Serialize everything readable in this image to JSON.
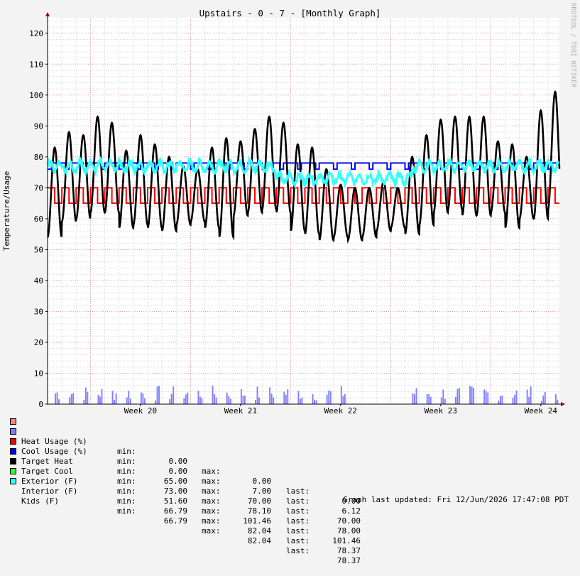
{
  "chart_data": {
    "type": "line",
    "title": "Upstairs - 0 - 7 - [Monthly Graph]",
    "ylabel": "Temperature/Usage",
    "xlabel": "",
    "ylim": [
      0,
      125
    ],
    "yticks": [
      0,
      10,
      20,
      30,
      40,
      50,
      60,
      70,
      80,
      90,
      100,
      110,
      120
    ],
    "xticks": [
      {
        "label": "Week 20",
        "day": 6.5
      },
      {
        "label": "Week 21",
        "day": 13.5
      },
      {
        "label": "Week 22",
        "day": 20.5
      },
      {
        "label": "Week 23",
        "day": 27.5
      },
      {
        "label": "Week 24",
        "day": 34.5
      }
    ],
    "xlim_days": [
      0,
      35.8
    ],
    "grid": true,
    "watermark": "RRDTOOL / TOBI OETIKER",
    "series": [
      {
        "name": "Heat Usage (%)",
        "color": "#ff8080",
        "min": "0.00",
        "max": "0.00",
        "last": "0.00"
      },
      {
        "name": "Cool Usage (%)",
        "color": "#8080ff",
        "min": "0.00",
        "max": "7.00",
        "last": "6.12"
      },
      {
        "name": "Target Heat",
        "color": "#ff0000",
        "min": "65.00",
        "max": "70.00",
        "last": "70.00"
      },
      {
        "name": "Target Cool",
        "color": "#0000ff",
        "min": "73.00",
        "max": "78.10",
        "last": "78.00"
      },
      {
        "name": "Exterior (F)",
        "color": "#000000",
        "min": "51.60",
        "max": "101.46",
        "last": "101.46"
      },
      {
        "name": "Interior (F)",
        "color": "#33ff33",
        "min": "66.79",
        "max": "82.04",
        "last": "78.37"
      },
      {
        "name": "Kids (F)",
        "color": "#33ffff",
        "min": "66.79",
        "max": "82.04",
        "last": "78.37"
      }
    ],
    "exterior_daily": [
      {
        "day": 0,
        "low": 54,
        "high": 83
      },
      {
        "day": 1,
        "low": 59,
        "high": 88
      },
      {
        "day": 2,
        "low": 60,
        "high": 87
      },
      {
        "day": 3,
        "low": 62,
        "high": 93
      },
      {
        "day": 4,
        "low": 62,
        "high": 91
      },
      {
        "day": 5,
        "low": 57,
        "high": 82
      },
      {
        "day": 6,
        "low": 58,
        "high": 87
      },
      {
        "day": 7,
        "low": 57,
        "high": 84
      },
      {
        "day": 8,
        "low": 56,
        "high": 80
      },
      {
        "day": 9,
        "low": 58,
        "high": 77
      },
      {
        "day": 10,
        "low": 59,
        "high": 76
      },
      {
        "day": 11,
        "low": 57,
        "high": 83
      },
      {
        "day": 12,
        "low": 54,
        "high": 86
      },
      {
        "day": 13,
        "low": 61,
        "high": 85
      },
      {
        "day": 14,
        "low": 62,
        "high": 89
      },
      {
        "day": 15,
        "low": 63,
        "high": 93
      },
      {
        "day": 16,
        "low": 62,
        "high": 91
      },
      {
        "day": 17,
        "low": 56,
        "high": 84
      },
      {
        "day": 18,
        "low": 55,
        "high": 83
      },
      {
        "day": 19,
        "low": 53,
        "high": 76
      },
      {
        "day": 20,
        "low": 54,
        "high": 71
      },
      {
        "day": 21,
        "low": 53,
        "high": 70
      },
      {
        "day": 22,
        "low": 54,
        "high": 70
      },
      {
        "day": 23,
        "low": 56,
        "high": 72
      },
      {
        "day": 24,
        "low": 57,
        "high": 70
      },
      {
        "day": 25,
        "low": 55,
        "high": 80
      },
      {
        "day": 26,
        "low": 58,
        "high": 87
      },
      {
        "day": 27,
        "low": 62,
        "high": 92
      },
      {
        "day": 28,
        "low": 63,
        "high": 93
      },
      {
        "day": 29,
        "low": 61,
        "high": 93
      },
      {
        "day": 30,
        "low": 61,
        "high": 93
      },
      {
        "day": 31,
        "low": 62,
        "high": 85
      },
      {
        "day": 32,
        "low": 57,
        "high": 84
      },
      {
        "day": 33,
        "low": 60,
        "high": 80
      },
      {
        "day": 34,
        "low": 60,
        "high": 95
      },
      {
        "day": 35,
        "low": 63,
        "high": 101
      }
    ]
  },
  "legend": {
    "min_label": "min:",
    "max_label": "max:",
    "last_label": "last:"
  },
  "footer": {
    "updated": "Graph last updated: Fri 12/Jun/2026 17:47:08 PDT"
  }
}
